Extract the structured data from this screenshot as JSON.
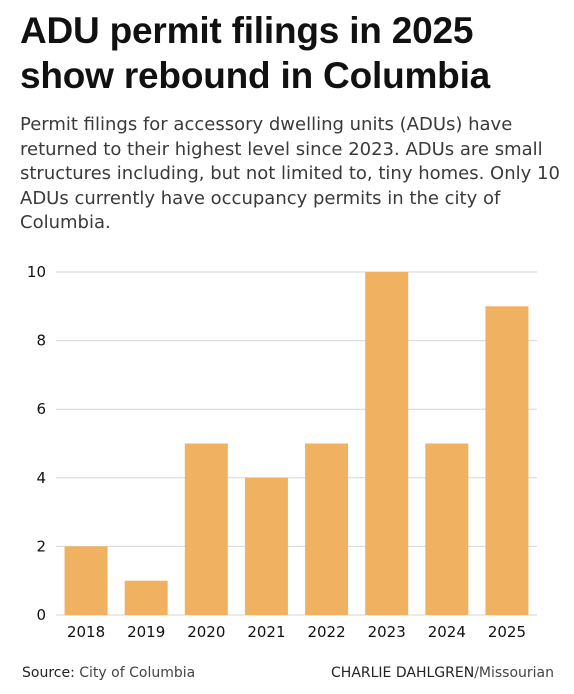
{
  "headline": "ADU permit filings in 2025 show rebound in Columbia",
  "dek": "Permit filings for accessory dwelling units (ADUs) have returned to their highest level since 2023. ADUs are small structures including, but not limited to, tiny homes. Only 10 ADUs currently have occupancy permits in the city of Columbia.",
  "footer": {
    "source_label": "Source:",
    "source_value": "City of Columbia",
    "credit_name": "CHARLIE DAHLGREN",
    "credit_outlet": "/Missourian"
  },
  "colors": {
    "bar": "#F0B161",
    "grid": "#D6D6D6",
    "axis_text": "#111111"
  },
  "chart_data": {
    "type": "bar",
    "categories": [
      "2018",
      "2019",
      "2020",
      "2021",
      "2022",
      "2023",
      "2024",
      "2025"
    ],
    "values": [
      2,
      1,
      5,
      4,
      5,
      10,
      5,
      9
    ],
    "yticks": [
      "0",
      "2",
      "4",
      "6",
      "8",
      "10"
    ],
    "ylim": [
      0,
      10
    ],
    "xlabel": "",
    "ylabel": "",
    "grid": "horizontal",
    "legend": "none"
  }
}
